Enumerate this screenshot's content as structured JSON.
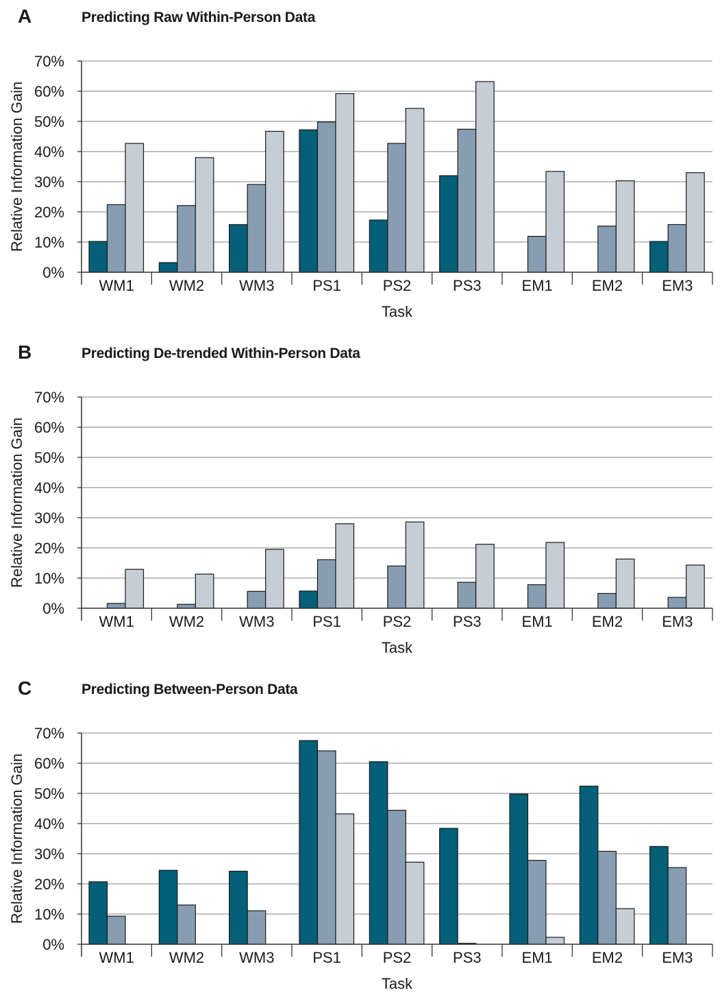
{
  "chart_data": [
    {
      "type": "bar",
      "panel_label": "A",
      "title": "Predicting Raw Within-Person Data",
      "xlabel": "Task",
      "ylabel": "Relative Information Gain",
      "ylim": [
        0,
        70
      ],
      "yticks": [
        "0%",
        "10%",
        "20%",
        "30%",
        "40%",
        "50%",
        "60%",
        "70%"
      ],
      "grid": true,
      "categories": [
        "WM1",
        "WM2",
        "WM3",
        "PS1",
        "PS2",
        "PS3",
        "EM1",
        "EM2",
        "EM3"
      ],
      "series": [
        {
          "color": "#045f78",
          "values": [
            10.2,
            3.2,
            15.8,
            47.2,
            17.3,
            32.0,
            0,
            0,
            10.2
          ]
        },
        {
          "color": "#879db1",
          "values": [
            22.4,
            22.1,
            29.1,
            49.8,
            42.7,
            47.4,
            11.9,
            15.3,
            15.8
          ]
        },
        {
          "color": "#c5cdd6",
          "values": [
            42.7,
            38.0,
            46.7,
            59.2,
            54.3,
            63.2,
            33.4,
            30.3,
            33.0
          ]
        }
      ]
    },
    {
      "type": "bar",
      "panel_label": "B",
      "title": "Predicting De-trended Within-Person Data",
      "xlabel": "Task",
      "ylabel": "Relative Information Gain",
      "ylim": [
        0,
        70
      ],
      "yticks": [
        "0%",
        "10%",
        "20%",
        "30%",
        "40%",
        "50%",
        "60%",
        "70%"
      ],
      "grid": true,
      "categories": [
        "WM1",
        "WM2",
        "WM3",
        "PS1",
        "PS2",
        "PS3",
        "EM1",
        "EM2",
        "EM3"
      ],
      "series": [
        {
          "color": "#045f78",
          "values": [
            0,
            0,
            0,
            5.7,
            0,
            0,
            0,
            0,
            0
          ]
        },
        {
          "color": "#879db1",
          "values": [
            1.6,
            1.3,
            5.6,
            16.1,
            14.0,
            8.6,
            7.8,
            4.9,
            3.6
          ]
        },
        {
          "color": "#c5cdd6",
          "values": [
            12.9,
            11.3,
            19.5,
            28.0,
            28.6,
            21.2,
            21.8,
            16.3,
            14.3
          ]
        }
      ]
    },
    {
      "type": "bar",
      "panel_label": "C",
      "title": "Predicting Between-Person Data",
      "xlabel": "Task",
      "ylabel": "Relative Information Gain",
      "ylim": [
        0,
        70
      ],
      "yticks": [
        "0%",
        "10%",
        "20%",
        "30%",
        "40%",
        "50%",
        "60%",
        "70%"
      ],
      "grid": true,
      "categories": [
        "WM1",
        "WM2",
        "WM3",
        "PS1",
        "PS2",
        "PS3",
        "EM1",
        "EM2",
        "EM3"
      ],
      "series": [
        {
          "color": "#045f78",
          "values": [
            20.7,
            24.5,
            24.2,
            67.5,
            60.5,
            38.4,
            49.8,
            52.4,
            32.4
          ]
        },
        {
          "color": "#879db1",
          "values": [
            9.3,
            13.0,
            11.1,
            64.1,
            44.4,
            0.3,
            27.8,
            30.8,
            25.4
          ]
        },
        {
          "color": "#c5cdd6",
          "values": [
            0,
            0,
            0,
            43.2,
            27.2,
            0,
            2.3,
            11.8,
            0
          ]
        }
      ]
    }
  ]
}
